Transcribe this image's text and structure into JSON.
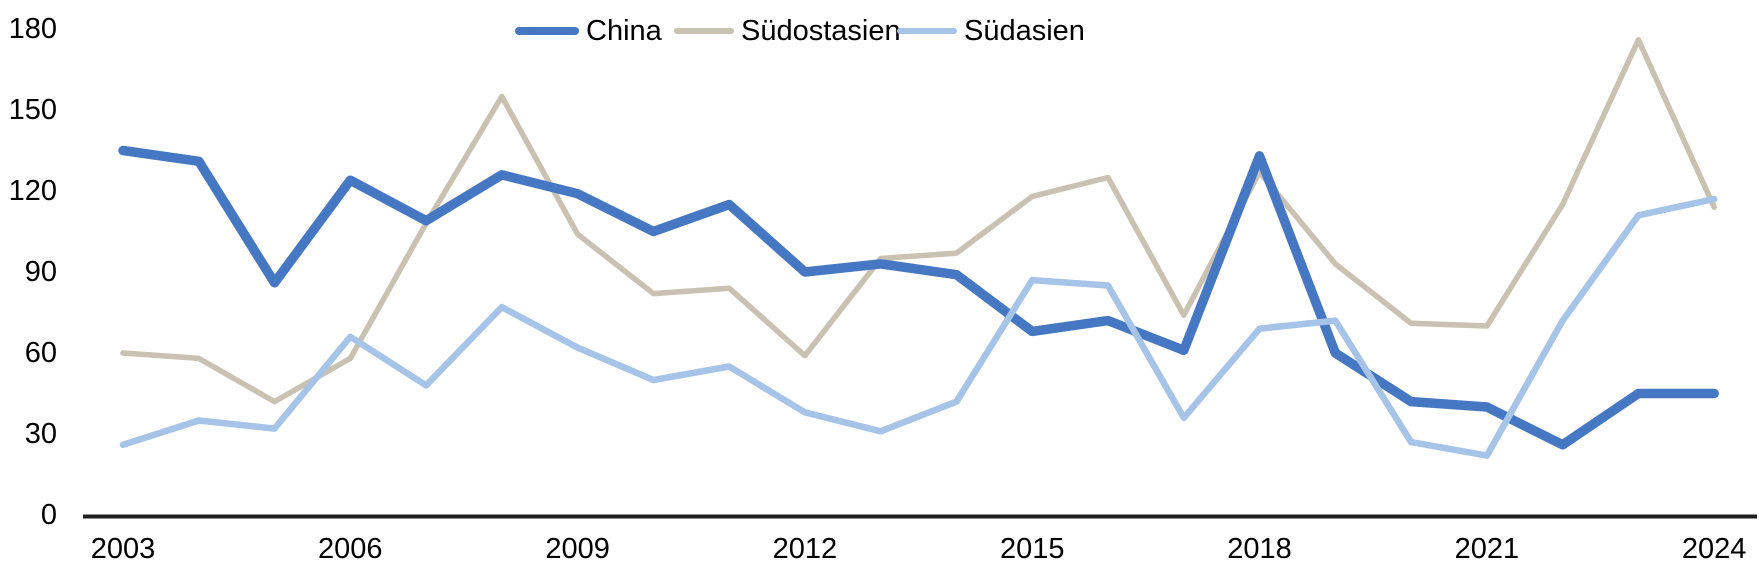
{
  "chart_data": {
    "type": "line",
    "title": "",
    "xlabel": "",
    "ylabel": "",
    "x": [
      2003,
      2004,
      2005,
      2006,
      2007,
      2008,
      2009,
      2010,
      2011,
      2012,
      2013,
      2014,
      2015,
      2016,
      2017,
      2018,
      2019,
      2020,
      2021,
      2022,
      2023,
      2024
    ],
    "x_tick_labels": [
      "2003",
      "2006",
      "2009",
      "2012",
      "2015",
      "2018",
      "2021",
      "2024"
    ],
    "y_ticks": [
      0,
      30,
      60,
      90,
      120,
      150,
      180
    ],
    "ylim": [
      0,
      180
    ],
    "grid": false,
    "legend_position": "top",
    "axis_color": "#1f1f1f",
    "text_color": "#000000",
    "background_color": "#ffffff",
    "draw_order": [
      "Südostasien",
      "China",
      "Südasien"
    ],
    "series": [
      {
        "name": "China",
        "color": "#4577C3",
        "stroke_width": 9.5,
        "values": [
          135,
          131,
          86,
          124,
          109,
          126,
          119,
          105,
          115,
          90,
          93,
          89,
          68,
          72,
          61,
          133,
          60,
          42,
          40,
          26,
          45,
          45
        ]
      },
      {
        "name": "Südostasien",
        "color": "#C9C1B1",
        "stroke_width": 5.5,
        "values": [
          60,
          58,
          42,
          58,
          108,
          155,
          104,
          82,
          84,
          59,
          95,
          97,
          118,
          125,
          74,
          127,
          93,
          71,
          70,
          115,
          176,
          114
        ]
      },
      {
        "name": "Südasien",
        "color": "#A6C3E8",
        "stroke_width": 6.5,
        "values": [
          26,
          35,
          32,
          66,
          48,
          77,
          62,
          50,
          55,
          38,
          31,
          42,
          87,
          85,
          36,
          69,
          72,
          27,
          22,
          72,
          111,
          117
        ]
      }
    ]
  },
  "legend": {
    "items": [
      {
        "label": "China"
      },
      {
        "label": "Südostasien"
      },
      {
        "label": "Südasien"
      }
    ]
  }
}
